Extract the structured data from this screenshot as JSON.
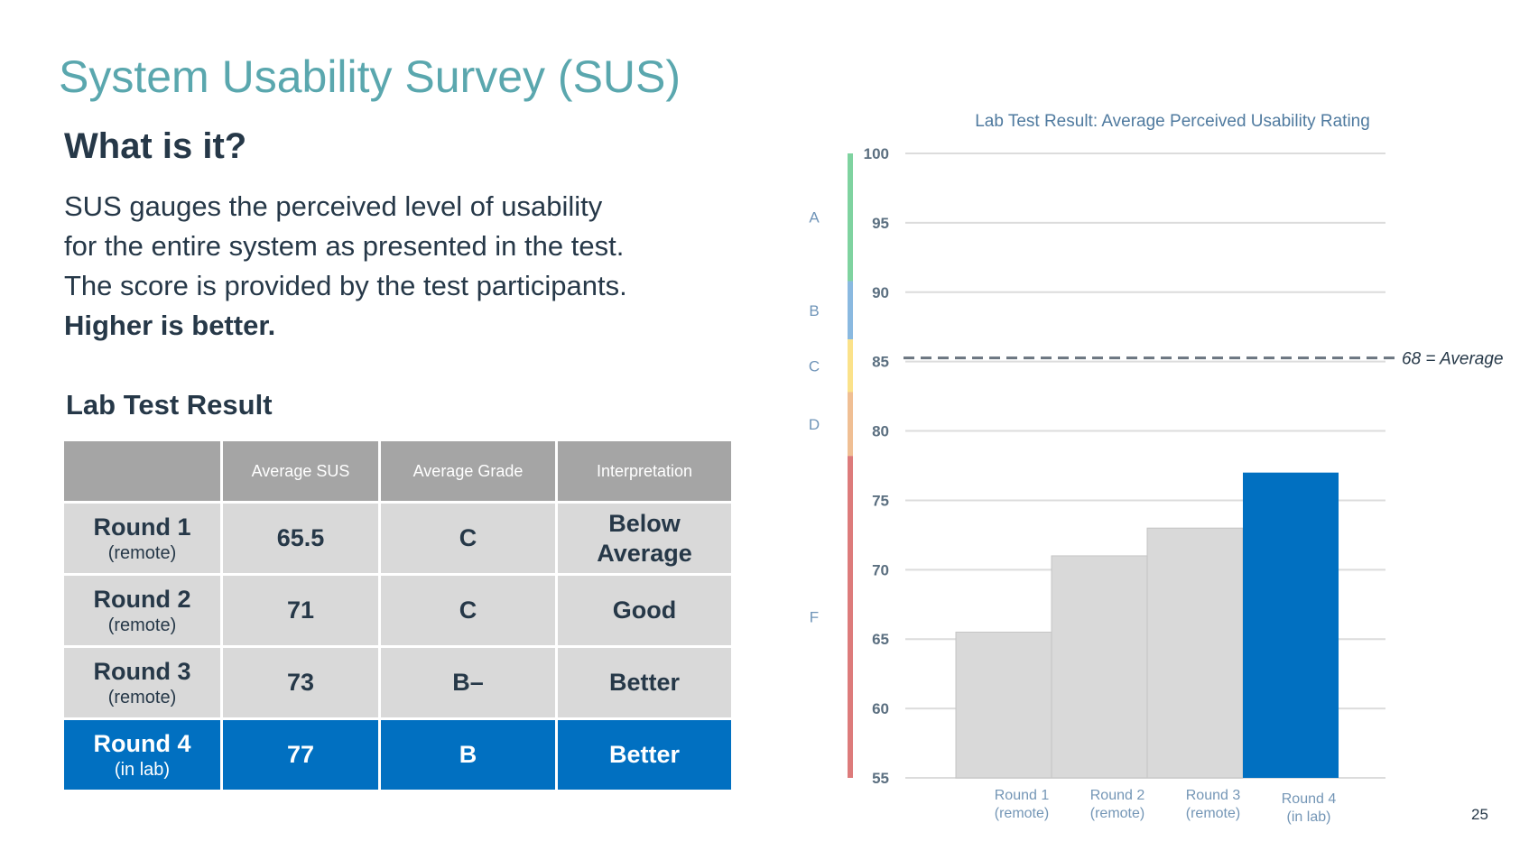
{
  "slide": {
    "title": "System Usability Survey (SUS)",
    "heading": "What is it?",
    "description_lines": [
      "SUS gauges the perceived level of usability",
      "for the entire system as presented in the test.",
      "The score is provided by the test participants.",
      "Higher is better."
    ],
    "table_heading": "Lab Test Result",
    "page_number": "25"
  },
  "table": {
    "headers": [
      "",
      "Average SUS",
      "Average Grade",
      "Interpretation"
    ],
    "rows": [
      {
        "round": "Round 1",
        "sub": "(remote)",
        "sus": "65.5",
        "grade": "C",
        "interpretation": "Below Average",
        "highlight": false
      },
      {
        "round": "Round 2",
        "sub": "(remote)",
        "sus": "71",
        "grade": "C",
        "interpretation": "Good",
        "highlight": false
      },
      {
        "round": "Round 3",
        "sub": "(remote)",
        "sus": "73",
        "grade": "B–",
        "interpretation": "Better",
        "highlight": false
      },
      {
        "round": "Round 4",
        "sub": "(in lab)",
        "sus": "77",
        "grade": "B",
        "interpretation": "Better",
        "highlight": true
      }
    ],
    "colors": {
      "header_bg": "#a5a5a5",
      "row_bg": "#d9d9d9",
      "highlight_bg": "#0170c1"
    }
  },
  "chart_data": {
    "type": "bar",
    "title": "Lab Test Result: Average Perceived Usability Rating",
    "categories": [
      "Round 1\n(remote)",
      "Round 2\n(remote)",
      "Round 3\n(remote)",
      "Round 4\n(in lab)"
    ],
    "values": [
      65.5,
      71,
      73,
      77
    ],
    "bar_colors": [
      "#d9d9d9",
      "#d9d9d9",
      "#d9d9d9",
      "#0170c1"
    ],
    "ylim": [
      55,
      100
    ],
    "yticks": [
      55,
      60,
      65,
      70,
      75,
      80,
      85,
      90,
      95,
      100
    ],
    "xlabel": "",
    "ylabel": "",
    "grid": true,
    "reference_line": {
      "value": 85,
      "label": "68 = Average",
      "style": "dashed"
    },
    "grade_bands": [
      {
        "grade": "A",
        "from": 90.8,
        "to": 100,
        "color": "#7fd3a0"
      },
      {
        "grade": "B",
        "from": 86.6,
        "to": 90.8,
        "color": "#8ab9e0"
      },
      {
        "grade": "C",
        "from": 82.8,
        "to": 86.6,
        "color": "#fbe28a"
      },
      {
        "grade": "D",
        "from": 78.2,
        "to": 82.8,
        "color": "#f0bf94"
      },
      {
        "grade": "F",
        "from": 55,
        "to": 78.2,
        "color": "#dd7b7b"
      }
    ],
    "colors": {
      "title": "#4f7a9f",
      "tick": "#5b6f80",
      "grid": "#dcdcdc",
      "category_label": "#7496b6",
      "grade_label": "#6f94b8"
    }
  }
}
